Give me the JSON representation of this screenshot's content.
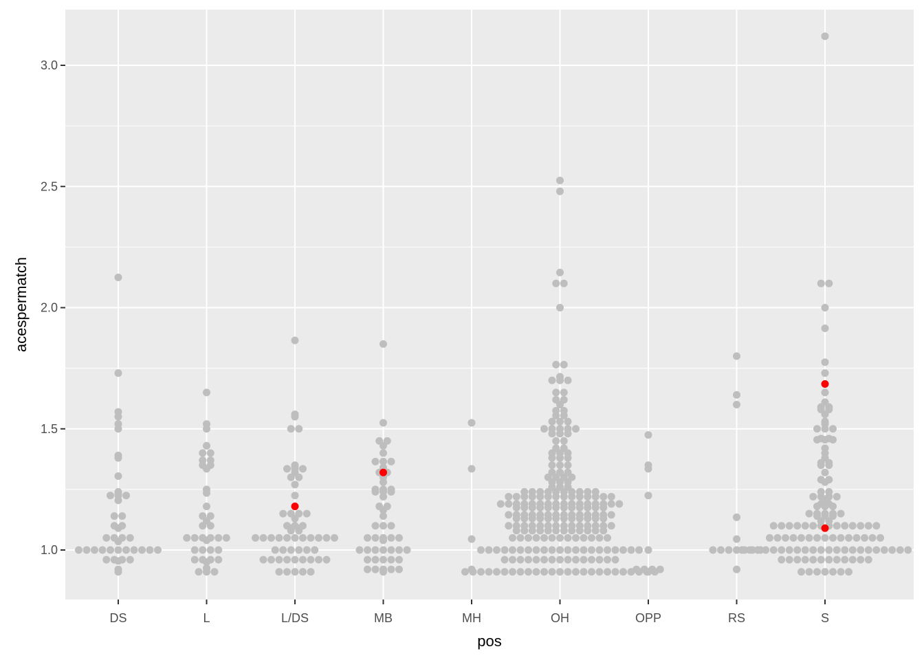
{
  "chart_data": {
    "type": "scatter",
    "subtype": "beeswarm",
    "title": "",
    "xlabel": "pos",
    "ylabel": "acespermatch",
    "categories": [
      "DS",
      "L",
      "L/DS",
      "MB",
      "MH",
      "OH",
      "OPP",
      "RS",
      "S"
    ],
    "ylim": [
      0.8,
      3.22
    ],
    "yticks": [
      1.0,
      1.5,
      2.0,
      2.5,
      3.0
    ],
    "ytick_labels": [
      "1.0",
      "1.5",
      "2.0",
      "2.5",
      "3.0"
    ],
    "grid": true,
    "legend": null,
    "colors": {
      "panel_background": "#EBEBEB",
      "grid": "#FFFFFF",
      "point": "#BEBEBE",
      "highlight": "#FF0000",
      "tick_text": "#4D4D4D",
      "axis_title": "#000000"
    },
    "groups": [
      {
        "name": "DS",
        "rows": [
          [
            2.125,
            1
          ],
          [
            1.73,
            1
          ],
          [
            1.57,
            1
          ],
          [
            1.55,
            1
          ],
          [
            1.52,
            1
          ],
          [
            1.5,
            1
          ],
          [
            1.39,
            1
          ],
          [
            1.38,
            1
          ],
          [
            1.305,
            1
          ],
          [
            1.24,
            1
          ],
          [
            1.23,
            1
          ],
          [
            1.225,
            3
          ],
          [
            1.205,
            1
          ],
          [
            1.14,
            2
          ],
          [
            1.1,
            2
          ],
          [
            1.09,
            1
          ],
          [
            1.05,
            4
          ],
          [
            1.035,
            1
          ],
          [
            1.0,
            11
          ],
          [
            0.96,
            4
          ],
          [
            0.955,
            1
          ],
          [
            0.92,
            1
          ],
          [
            0.91,
            1
          ]
        ]
      },
      {
        "name": "L",
        "rows": [
          [
            1.65,
            1
          ],
          [
            1.52,
            1
          ],
          [
            1.5,
            1
          ],
          [
            1.43,
            1
          ],
          [
            1.4,
            2
          ],
          [
            1.37,
            2
          ],
          [
            1.35,
            2
          ],
          [
            1.335,
            1
          ],
          [
            1.25,
            1
          ],
          [
            1.235,
            1
          ],
          [
            1.18,
            1
          ],
          [
            1.14,
            2
          ],
          [
            1.12,
            1
          ],
          [
            1.1,
            2
          ],
          [
            1.05,
            6
          ],
          [
            1.04,
            1
          ],
          [
            1.0,
            4
          ],
          [
            0.96,
            4
          ],
          [
            0.95,
            1
          ],
          [
            0.925,
            1
          ],
          [
            0.91,
            3
          ]
        ]
      },
      {
        "name": "L/DS",
        "rows": [
          [
            1.865,
            1
          ],
          [
            1.56,
            1
          ],
          [
            1.55,
            1
          ],
          [
            1.5,
            2
          ],
          [
            1.35,
            1
          ],
          [
            1.34,
            1
          ],
          [
            1.335,
            3
          ],
          [
            1.32,
            1
          ],
          [
            1.3,
            2
          ],
          [
            1.27,
            1
          ],
          [
            1.225,
            1
          ],
          [
            1.15,
            4
          ],
          [
            1.13,
            1
          ],
          [
            1.1,
            3
          ],
          [
            1.09,
            2
          ],
          [
            1.08,
            2
          ],
          [
            1.05,
            11
          ],
          [
            1.0,
            6
          ],
          [
            0.96,
            9
          ],
          [
            0.91,
            5
          ]
        ]
      },
      {
        "name": "MB",
        "rows": [
          [
            1.85,
            1
          ],
          [
            1.525,
            1
          ],
          [
            1.45,
            2
          ],
          [
            1.43,
            1
          ],
          [
            1.4,
            1
          ],
          [
            1.365,
            3
          ],
          [
            1.34,
            1
          ],
          [
            1.32,
            2
          ],
          [
            1.3,
            1
          ],
          [
            1.28,
            1
          ],
          [
            1.25,
            3
          ],
          [
            1.24,
            3
          ],
          [
            1.22,
            1
          ],
          [
            1.18,
            2
          ],
          [
            1.165,
            1
          ],
          [
            1.14,
            1
          ],
          [
            1.1,
            3
          ],
          [
            1.05,
            5
          ],
          [
            1.04,
            1
          ],
          [
            1.0,
            7
          ],
          [
            0.96,
            5
          ],
          [
            0.92,
            5
          ],
          [
            0.91,
            1
          ]
        ]
      },
      {
        "name": "MH",
        "rows": [
          [
            1.525,
            1
          ],
          [
            1.335,
            1
          ],
          [
            1.045,
            1
          ],
          [
            0.92,
            1
          ]
        ]
      },
      {
        "name": "OH",
        "rows": [
          [
            2.525,
            1
          ],
          [
            2.48,
            1
          ],
          [
            2.145,
            1
          ],
          [
            2.1,
            2
          ],
          [
            2.0,
            1
          ],
          [
            1.765,
            2
          ],
          [
            1.715,
            1
          ],
          [
            1.7,
            3
          ],
          [
            1.65,
            2
          ],
          [
            1.62,
            2
          ],
          [
            1.6,
            1
          ],
          [
            1.575,
            2
          ],
          [
            1.555,
            2
          ],
          [
            1.53,
            3
          ],
          [
            1.5,
            5
          ],
          [
            1.48,
            3
          ],
          [
            1.45,
            2
          ],
          [
            1.42,
            2
          ],
          [
            1.4,
            3
          ],
          [
            1.38,
            3
          ],
          [
            1.35,
            3
          ],
          [
            1.32,
            3
          ],
          [
            1.3,
            4
          ],
          [
            1.28,
            3
          ],
          [
            1.26,
            3
          ],
          [
            1.24,
            10
          ],
          [
            1.22,
            14
          ],
          [
            1.19,
            16
          ],
          [
            1.175,
            12
          ],
          [
            1.145,
            14
          ],
          [
            1.13,
            12
          ],
          [
            1.1,
            14
          ],
          [
            1.08,
            12
          ],
          [
            1.05,
            13
          ],
          [
            1.0,
            21
          ],
          [
            0.96,
            15
          ],
          [
            0.91,
            25
          ]
        ]
      },
      {
        "name": "OPP",
        "rows": [
          [
            1.475,
            1
          ],
          [
            1.35,
            1
          ],
          [
            1.335,
            1
          ],
          [
            1.225,
            1
          ],
          [
            1.0,
            1
          ],
          [
            0.92,
            4
          ],
          [
            0.91,
            1
          ]
        ]
      },
      {
        "name": "RS",
        "rows": [
          [
            1.8,
            1
          ],
          [
            1.64,
            1
          ],
          [
            1.6,
            1
          ],
          [
            1.135,
            1
          ],
          [
            1.045,
            1
          ],
          [
            1.0,
            7
          ],
          [
            0.92,
            1
          ]
        ]
      },
      {
        "name": "S",
        "rows": [
          [
            3.12,
            1
          ],
          [
            2.1,
            2
          ],
          [
            2.0,
            1
          ],
          [
            1.915,
            1
          ],
          [
            1.775,
            1
          ],
          [
            1.73,
            1
          ],
          [
            1.685,
            1
          ],
          [
            1.65,
            1
          ],
          [
            1.61,
            1
          ],
          [
            1.59,
            2
          ],
          [
            1.58,
            2
          ],
          [
            1.56,
            1
          ],
          [
            1.53,
            1
          ],
          [
            1.52,
            1
          ],
          [
            1.5,
            3
          ],
          [
            1.46,
            2
          ],
          [
            1.455,
            3
          ],
          [
            1.42,
            1
          ],
          [
            1.4,
            1
          ],
          [
            1.38,
            1
          ],
          [
            1.36,
            2
          ],
          [
            1.35,
            2
          ],
          [
            1.32,
            1
          ],
          [
            1.29,
            2
          ],
          [
            1.28,
            1
          ],
          [
            1.24,
            2
          ],
          [
            1.22,
            4
          ],
          [
            1.21,
            1
          ],
          [
            1.19,
            2
          ],
          [
            1.18,
            3
          ],
          [
            1.15,
            5
          ],
          [
            1.14,
            3
          ],
          [
            1.12,
            2
          ],
          [
            1.1,
            14
          ],
          [
            1.05,
            15
          ],
          [
            1.0,
            22
          ],
          [
            0.96,
            12
          ],
          [
            0.91,
            7
          ]
        ]
      }
    ],
    "highlights": [
      {
        "group": "L/DS",
        "value": 1.18,
        "dx": 0
      },
      {
        "group": "MB",
        "value": 1.32,
        "dx": 0
      },
      {
        "group": "S",
        "value": 1.685,
        "dx": 0
      },
      {
        "group": "S",
        "value": 1.09,
        "dx": 0
      }
    ]
  }
}
